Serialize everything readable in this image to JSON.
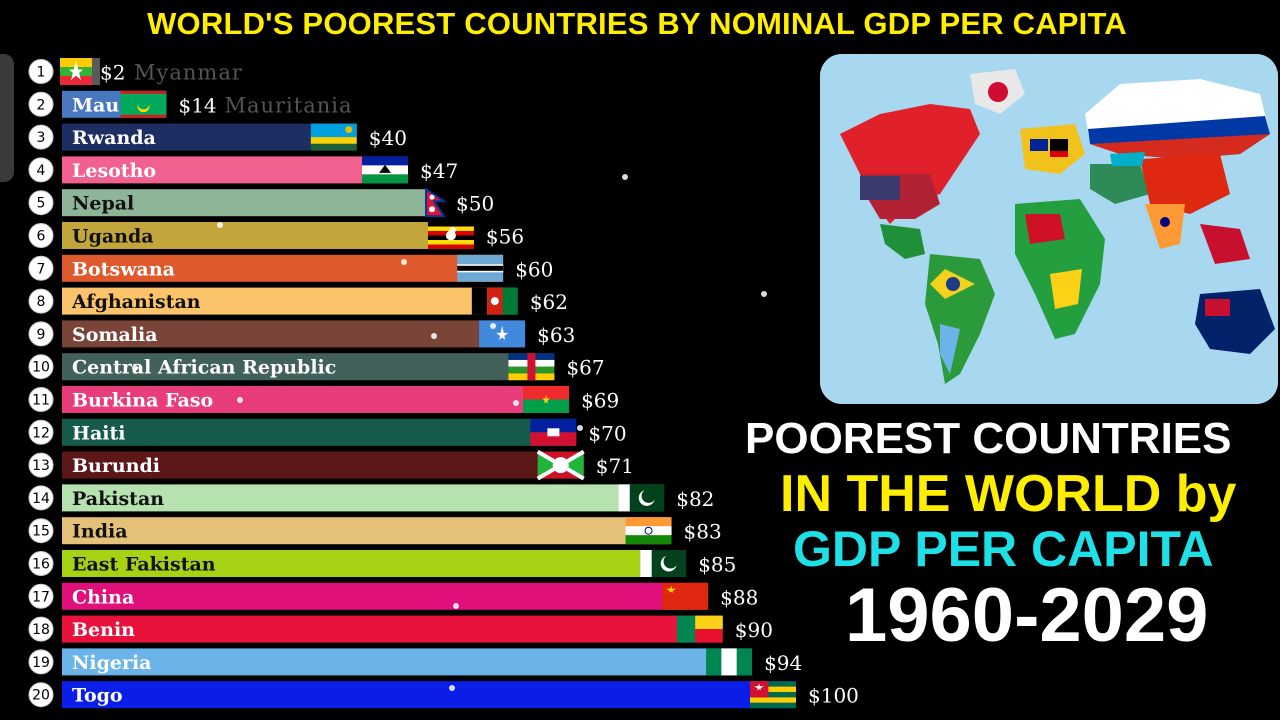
{
  "title": "WORLD'S POOREST COUNTRIES BY NOMINAL GDP PER CAPITA",
  "subtitle": {
    "line1": "POOREST COUNTRIES",
    "line2": "IN THE WORLD by",
    "line3": "GDP PER CAPITA",
    "line4": "1960-2029"
  },
  "colors": {
    "title": "#ffee00",
    "line2": "#ffee00",
    "line3": "#1ee0e6",
    "map_ocean": "#a8d8f0"
  },
  "map_icon": "world-map-with-flags",
  "chart_data": {
    "type": "bar",
    "orientation": "horizontal",
    "title": "WORLD'S POOREST COUNTRIES BY NOMINAL GDP PER CAPITA",
    "value_prefix": "$",
    "xlim": [
      0,
      100
    ],
    "bars": [
      {
        "rank": "1",
        "name": "",
        "value": 2,
        "value_label": "$2",
        "ghost_name": "Myanmar",
        "color": "#5a5a5a",
        "flag": "myanmar"
      },
      {
        "rank": "2",
        "name": "Mau",
        "value": 14,
        "value_label": "$14",
        "ghost_name": "Mauritania",
        "color": "#4a78c0",
        "flag": "mauritania"
      },
      {
        "rank": "3",
        "name": "Rwanda",
        "value": 40,
        "value_label": "$40",
        "color": "#1c2e62",
        "flag": "rwanda"
      },
      {
        "rank": "4",
        "name": "Lesotho",
        "value": 47,
        "value_label": "$47",
        "color": "#f2608f",
        "flag": "lesotho"
      },
      {
        "rank": "5",
        "name": "Nepal",
        "value": 50,
        "value_label": "$50",
        "color": "#8fb599",
        "flag": "nepal"
      },
      {
        "rank": "6",
        "name": "Uganda",
        "value": 56,
        "value_label": "$56",
        "color": "#c2a63c",
        "flag": "uganda"
      },
      {
        "rank": "7",
        "name": "Botswana",
        "value": 60,
        "value_label": "$60",
        "color": "#de5a2c",
        "flag": "botswana"
      },
      {
        "rank": "8",
        "name": "Afghanistan",
        "value": 62,
        "value_label": "$62",
        "color": "#fbc36a",
        "flag": "afghanistan"
      },
      {
        "rank": "9",
        "name": "Somalia",
        "value": 63,
        "value_label": "$63",
        "color": "#7a4538",
        "flag": "somalia"
      },
      {
        "rank": "10",
        "name": "Central African Republic",
        "value": 67,
        "value_label": "$67",
        "color": "#42615a",
        "flag": "car"
      },
      {
        "rank": "11",
        "name": "Burkina Faso",
        "value": 69,
        "value_label": "$69",
        "color": "#e83d7a",
        "flag": "burkina"
      },
      {
        "rank": "12",
        "name": "Haiti",
        "value": 70,
        "value_label": "$70",
        "color": "#155a4a",
        "flag": "haiti"
      },
      {
        "rank": "13",
        "name": "Burundi",
        "value": 71,
        "value_label": "$71",
        "color": "#5c1818",
        "flag": "burundi"
      },
      {
        "rank": "14",
        "name": "Pakistan",
        "value": 82,
        "value_label": "$82",
        "color": "#b6e2b0",
        "flag": "pakistan"
      },
      {
        "rank": "15",
        "name": "India",
        "value": 83,
        "value_label": "$83",
        "color": "#e5c078",
        "flag": "india"
      },
      {
        "rank": "16",
        "name": "East Fakistan",
        "value": 85,
        "value_label": "$85",
        "color": "#a6d214",
        "flag": "pakistan"
      },
      {
        "rank": "17",
        "name": "China",
        "value": 88,
        "value_label": "$88",
        "color": "#e0107a",
        "flag": "china"
      },
      {
        "rank": "18",
        "name": "Benin",
        "value": 90,
        "value_label": "$90",
        "color": "#e8123c",
        "flag": "benin"
      },
      {
        "rank": "19",
        "name": "Nigeria",
        "value": 94,
        "value_label": "$94",
        "color": "#6ab4ea",
        "flag": "nigeria"
      },
      {
        "rank": "20",
        "name": "Togo",
        "value": 100,
        "value_label": "$100",
        "color": "#0a1ee8",
        "flag": "togo"
      }
    ]
  }
}
